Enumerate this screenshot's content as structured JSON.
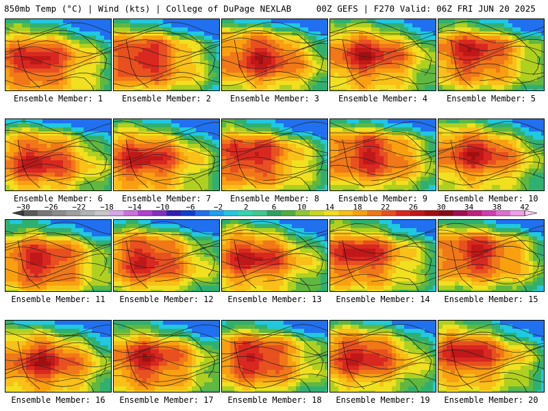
{
  "header": {
    "left_title": "850mb Temp (°C) | Wind (kts) | College of DuPage NEXLAB",
    "right_title": "00Z GEFS | F270 Valid: 06Z FRI JUN 20 2025"
  },
  "panels": [
    {
      "label": "Ensemble Member: 1"
    },
    {
      "label": "Ensemble Member: 2"
    },
    {
      "label": "Ensemble Member: 3"
    },
    {
      "label": "Ensemble Member: 4"
    },
    {
      "label": "Ensemble Member: 5"
    },
    {
      "label": "Ensemble Member: 6"
    },
    {
      "label": "Ensemble Member: 7"
    },
    {
      "label": "Ensemble Member: 8"
    },
    {
      "label": "Ensemble Member: 9"
    },
    {
      "label": "Ensemble Member: 10"
    },
    {
      "label": "Ensemble Member: 11"
    },
    {
      "label": "Ensemble Member: 12"
    },
    {
      "label": "Ensemble Member: 13"
    },
    {
      "label": "Ensemble Member: 14"
    },
    {
      "label": "Ensemble Member: 15"
    },
    {
      "label": "Ensemble Member: 16"
    },
    {
      "label": "Ensemble Member: 17"
    },
    {
      "label": "Ensemble Member: 18"
    },
    {
      "label": "Ensemble Member: 19"
    },
    {
      "label": "Ensemble Member: 20"
    }
  ],
  "colorbar": {
    "labels": [
      "−30",
      "−26",
      "−22",
      "−18",
      "−14",
      "−10",
      "−6",
      "−2",
      "2",
      "6",
      "10",
      "14",
      "18",
      "22",
      "26",
      "30",
      "34",
      "38",
      "42"
    ],
    "colors": [
      "#5a5a5a",
      "#787878",
      "#8c8c8c",
      "#a0a0a0",
      "#b4b4b4",
      "#c8c8c8",
      "#d8a8e8",
      "#d070e0",
      "#b040d0",
      "#8030c0",
      "#3020b0",
      "#1040d0",
      "#2070f0",
      "#20a0f0",
      "#20c8e0",
      "#30d8b0",
      "#40c890",
      "#30a060",
      "#50b040",
      "#90c830",
      "#c8d820",
      "#f0e020",
      "#f8c018",
      "#f8a010",
      "#f07818",
      "#e85020",
      "#d82820",
      "#c01818",
      "#a01010",
      "#880c18",
      "#a01050",
      "#c02080",
      "#d040b0",
      "#e070d0",
      "#f0a0e8"
    ]
  }
}
